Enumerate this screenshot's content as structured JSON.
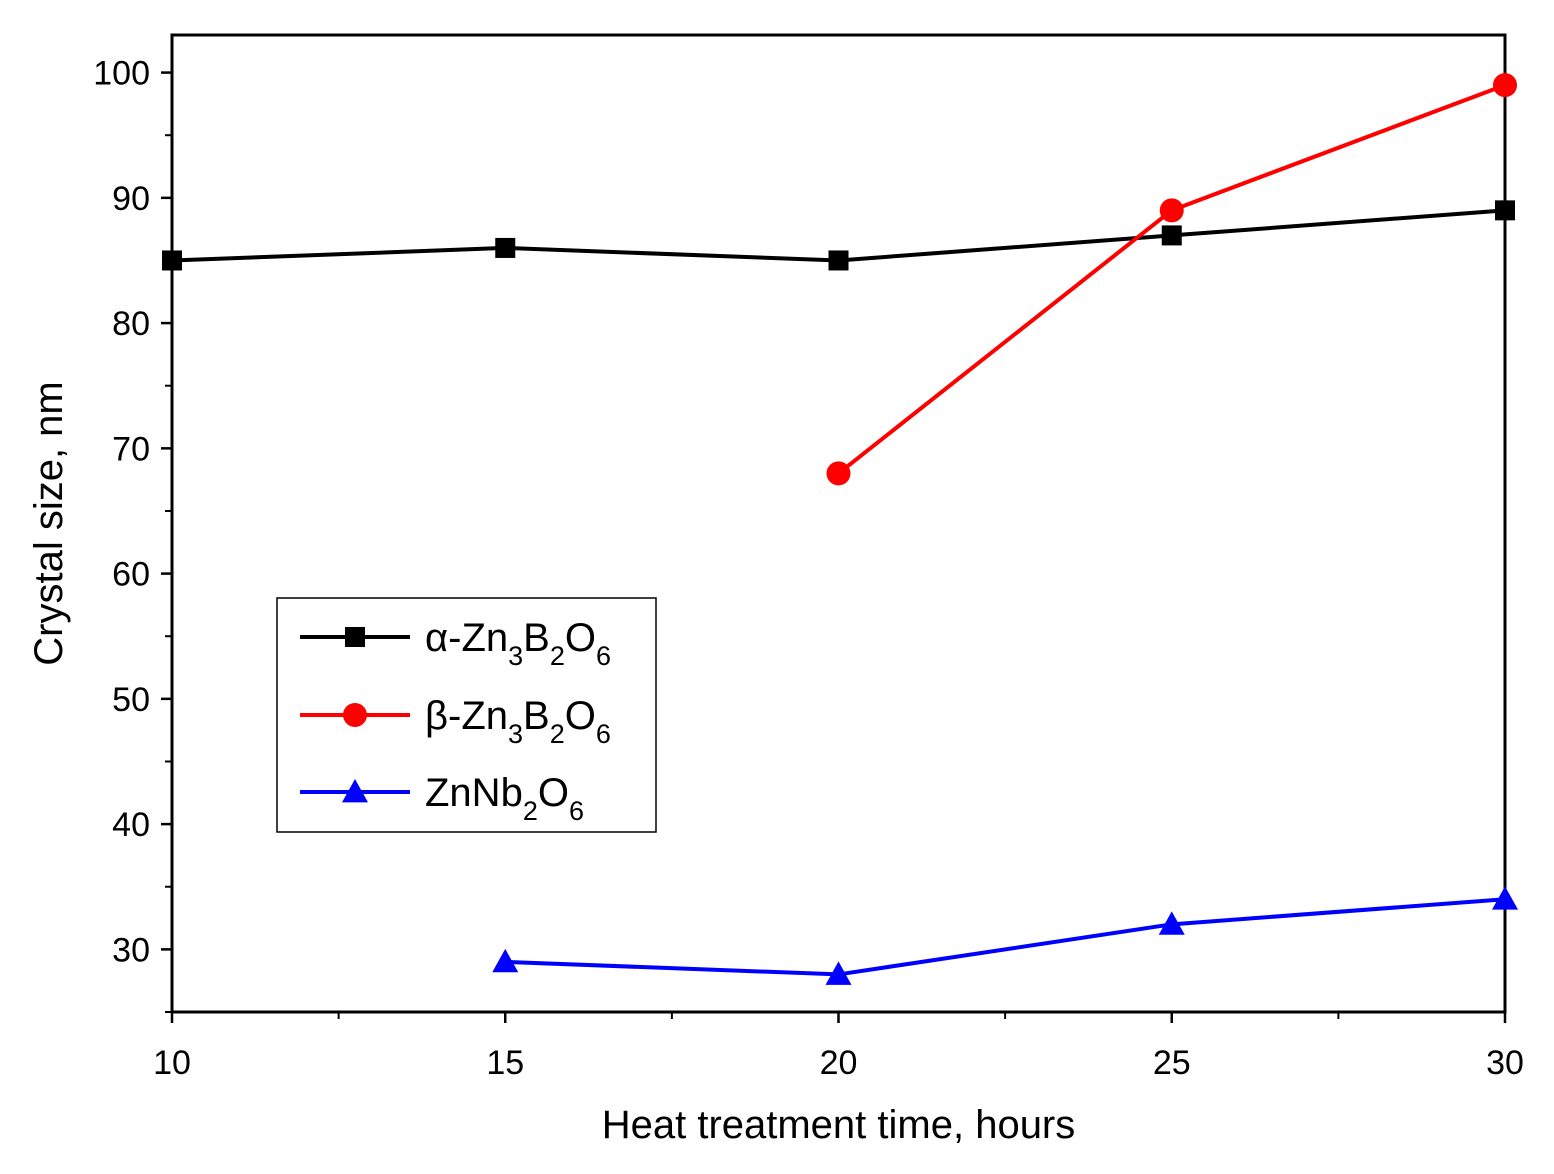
{
  "chart_data": {
    "type": "line",
    "title": "",
    "xlabel": "Heat treatment time, hours",
    "ylabel": "Crystal size, nm",
    "xlim": [
      10,
      30
    ],
    "ylim": [
      25,
      103
    ],
    "xticks": [
      10,
      15,
      20,
      25,
      30
    ],
    "yticks": [
      30,
      40,
      50,
      60,
      70,
      80,
      90,
      100
    ],
    "xtick_labels": [
      "10",
      "15",
      "20",
      "25",
      "30"
    ],
    "ytick_labels": [
      "30",
      "40",
      "50",
      "60",
      "70",
      "80",
      "90",
      "100"
    ],
    "grid": false,
    "legend_position": "center-left",
    "series": [
      {
        "name": "α-Zn3B2O6",
        "legend_parts": [
          {
            "text": "α-Zn",
            "sub": false
          },
          {
            "text": "3",
            "sub": true
          },
          {
            "text": "B",
            "sub": false
          },
          {
            "text": "2",
            "sub": true
          },
          {
            "text": "O",
            "sub": false
          },
          {
            "text": "6",
            "sub": true
          }
        ],
        "color": "#000000",
        "marker": "square",
        "x": [
          10,
          15,
          20,
          25,
          30
        ],
        "y": [
          85,
          86,
          85,
          87,
          89
        ]
      },
      {
        "name": "β-Zn3B2O6",
        "legend_parts": [
          {
            "text": "β-Zn",
            "sub": false
          },
          {
            "text": "3",
            "sub": true
          },
          {
            "text": "B",
            "sub": false
          },
          {
            "text": "2",
            "sub": true
          },
          {
            "text": "O",
            "sub": false
          },
          {
            "text": "6",
            "sub": true
          }
        ],
        "color": "#ff0000",
        "marker": "circle",
        "x": [
          20,
          25,
          30
        ],
        "y": [
          68,
          89,
          99
        ]
      },
      {
        "name": "ZnNb2O6",
        "legend_parts": [
          {
            "text": "ZnNb",
            "sub": false
          },
          {
            "text": "2",
            "sub": true
          },
          {
            "text": "O",
            "sub": false
          },
          {
            "text": "6",
            "sub": true
          }
        ],
        "color": "#0000ff",
        "marker": "triangle",
        "x": [
          15,
          20,
          25,
          30
        ],
        "y": [
          29,
          28,
          32,
          34
        ]
      }
    ]
  }
}
